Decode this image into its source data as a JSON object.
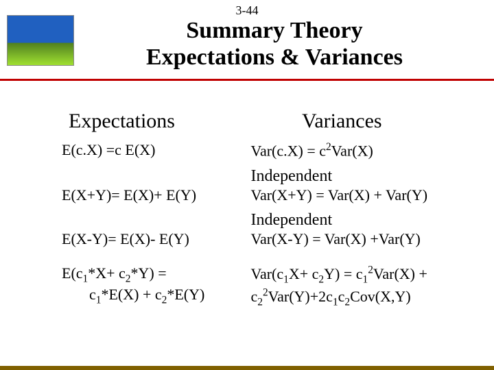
{
  "slide_number": "3-44",
  "title_line1": "Summary Theory",
  "title_line2": "Expectations & Variances",
  "columns": {
    "left_header": "Expectations",
    "right_header": "Variances"
  },
  "rows": {
    "r1": {
      "left": "E(c.X) =c E(X)",
      "right_html": "Var(c.X) = c<sup>2</sup>Var(X)"
    },
    "r2": {
      "indep": "Independent",
      "left": "E(X+Y)= E(X)+ E(Y)",
      "right": "Var(X+Y) = Var(X) + Var(Y)"
    },
    "r3": {
      "indep": "Independent",
      "left": "E(X-Y)= E(X)- E(Y)",
      "right": "Var(X-Y) = Var(X) +Var(Y)"
    },
    "r4": {
      "left_l1_html": "E(c<sub>1</sub>*X+ c<sub>2</sub>*Y)  =",
      "left_l2_html": "c<sub>1</sub>*E(X) + c<sub>2</sub>*E(Y)",
      "right_l1_html": "Var(c<sub>1</sub>X+ c<sub>2</sub>Y) = c<sub>1</sub><sup>2</sup>Var(X) +",
      "right_l2_html": "c<sub>2</sub><sup>2</sup>Var(Y)+2c<sub>1</sub>c<sub>2</sub>Cov(X,Y)"
    }
  },
  "colors": {
    "accent_line": "#c00000",
    "bottom_stripe": "#806000"
  }
}
